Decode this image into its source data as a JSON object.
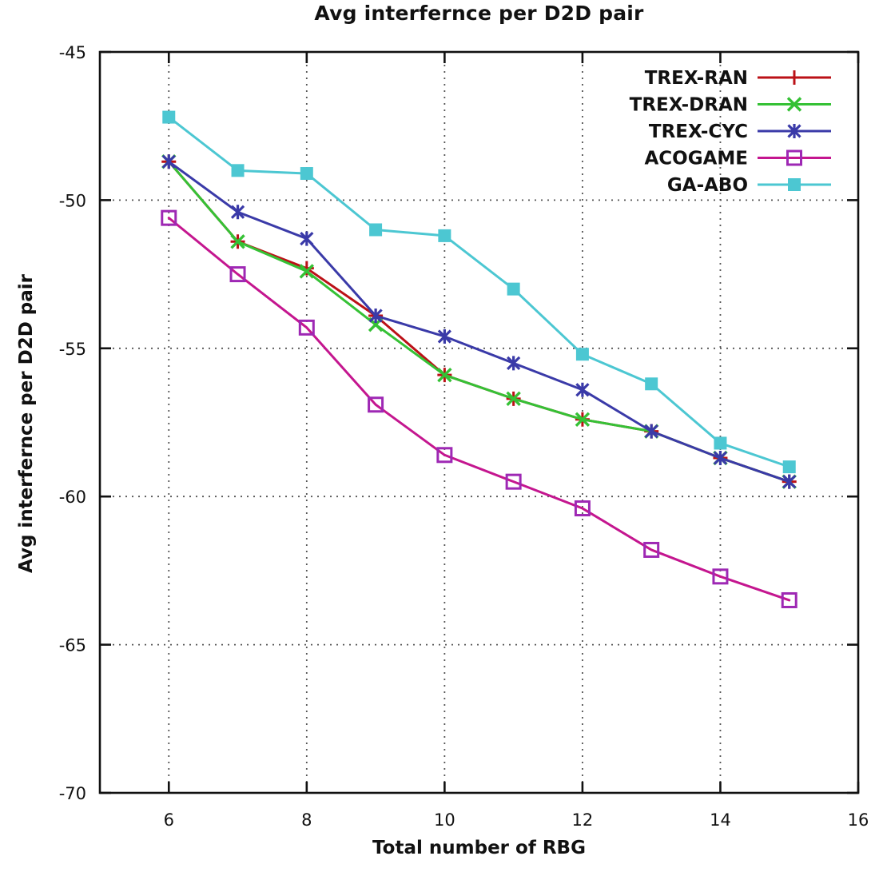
{
  "chart_data": {
    "type": "line",
    "title": "Avg interfernce per D2D pair",
    "xlabel": "Total number of RBG",
    "ylabel": "Avg interfernce per D2D pair",
    "xlim": [
      5,
      16
    ],
    "ylim": [
      -70,
      -45
    ],
    "xticks": [
      6,
      8,
      10,
      12,
      14,
      16
    ],
    "yticks": [
      -45,
      -50,
      -55,
      -60,
      -65,
      -70
    ],
    "grid": true,
    "grid_style": "dotted",
    "legend_position": "top-right-inside",
    "x": [
      6,
      7,
      8,
      9,
      10,
      11,
      12,
      13,
      14,
      15
    ],
    "series": [
      {
        "name": "TREX-RAN",
        "color": "#bb1117",
        "marker": "plus",
        "values": [
          -48.7,
          -51.4,
          -52.3,
          -53.9,
          -55.9,
          -56.7,
          -57.4,
          -57.8,
          -58.7,
          -59.5
        ]
      },
      {
        "name": "TREX-DRAN",
        "color": "#35c135",
        "marker": "x",
        "values": [
          -48.7,
          -51.4,
          -52.4,
          -54.2,
          -55.9,
          -56.7,
          -57.4,
          -57.8,
          -58.7,
          -59.5
        ]
      },
      {
        "name": "TREX-CYC",
        "color": "#3a3aa8",
        "marker": "asterisk",
        "values": [
          -48.7,
          -50.4,
          -51.3,
          -53.9,
          -54.6,
          -55.5,
          -56.4,
          -57.8,
          -58.7,
          -59.5
        ]
      },
      {
        "name": "ACOGAME",
        "color": "#c4168f",
        "marker_color": "#9e28b4",
        "marker": "square-open",
        "values": [
          -50.6,
          -52.5,
          -54.3,
          -56.9,
          -58.6,
          -59.5,
          -60.4,
          -61.8,
          -62.7,
          -63.5
        ]
      },
      {
        "name": "GA-ABO",
        "color": "#4cc7d2",
        "marker": "square-filled",
        "values": [
          -47.2,
          -49.0,
          -49.1,
          -51.0,
          -51.2,
          -53.0,
          -55.2,
          -56.2,
          -58.2,
          -59.0
        ]
      }
    ]
  }
}
